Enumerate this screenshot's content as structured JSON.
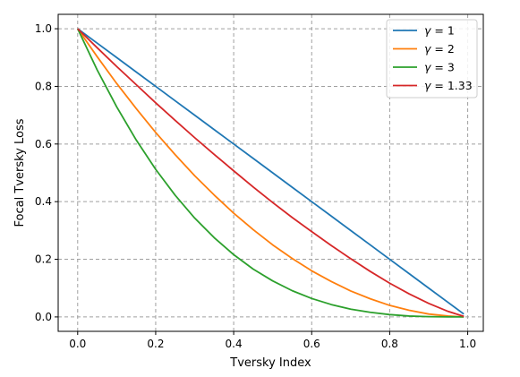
{
  "chart_data": {
    "type": "line",
    "title": "",
    "xlabel": "Tversky Index",
    "ylabel": "Focal Tversky Loss",
    "xlim": [
      -0.05,
      1.04
    ],
    "ylim": [
      -0.05,
      1.05
    ],
    "xticks": [
      0.0,
      0.2,
      0.4,
      0.6,
      0.8,
      1.0
    ],
    "yticks": [
      0.0,
      0.2,
      0.4,
      0.6,
      0.8,
      1.0
    ],
    "xtick_labels": [
      "0.0",
      "0.2",
      "0.4",
      "0.6",
      "0.8",
      "1.0"
    ],
    "ytick_labels": [
      "0.0",
      "0.2",
      "0.4",
      "0.6",
      "0.8",
      "1.0"
    ],
    "grid": true,
    "legend_position": "top-right",
    "x": [
      0.0,
      0.05,
      0.1,
      0.15,
      0.2,
      0.25,
      0.3,
      0.35,
      0.4,
      0.45,
      0.5,
      0.55,
      0.6,
      0.65,
      0.7,
      0.75,
      0.8,
      0.85,
      0.9,
      0.95,
      0.99
    ],
    "series": [
      {
        "name": "γ = 1",
        "legend_symbol": "γ",
        "legend_value": "= 1",
        "color": "#1f77b4",
        "values": [
          1.0,
          0.95,
          0.9,
          0.85,
          0.8,
          0.75,
          0.7,
          0.65,
          0.6,
          0.55,
          0.5,
          0.45,
          0.4,
          0.35,
          0.3,
          0.25,
          0.2,
          0.15,
          0.1,
          0.05,
          0.01
        ]
      },
      {
        "name": "γ = 2",
        "legend_symbol": "γ",
        "legend_value": "= 2",
        "color": "#ff7f0e",
        "values": [
          1.0,
          0.903,
          0.81,
          0.723,
          0.64,
          0.563,
          0.49,
          0.423,
          0.36,
          0.303,
          0.25,
          0.203,
          0.16,
          0.123,
          0.09,
          0.063,
          0.04,
          0.023,
          0.01,
          0.003,
          0.0
        ]
      },
      {
        "name": "γ = 3",
        "legend_symbol": "γ",
        "legend_value": "= 3",
        "color": "#2ca02c",
        "values": [
          1.0,
          0.857,
          0.729,
          0.614,
          0.512,
          0.422,
          0.343,
          0.275,
          0.216,
          0.166,
          0.125,
          0.091,
          0.064,
          0.043,
          0.027,
          0.016,
          0.008,
          0.003,
          0.001,
          0.0,
          0.0
        ]
      },
      {
        "name": "γ = 1.33",
        "legend_symbol": "γ",
        "legend_value": "= 1.33",
        "color": "#d62728",
        "values": [
          1.0,
          0.934,
          0.869,
          0.806,
          0.743,
          0.682,
          0.622,
          0.564,
          0.507,
          0.451,
          0.397,
          0.345,
          0.296,
          0.248,
          0.202,
          0.158,
          0.117,
          0.08,
          0.047,
          0.019,
          0.002
        ]
      }
    ]
  }
}
